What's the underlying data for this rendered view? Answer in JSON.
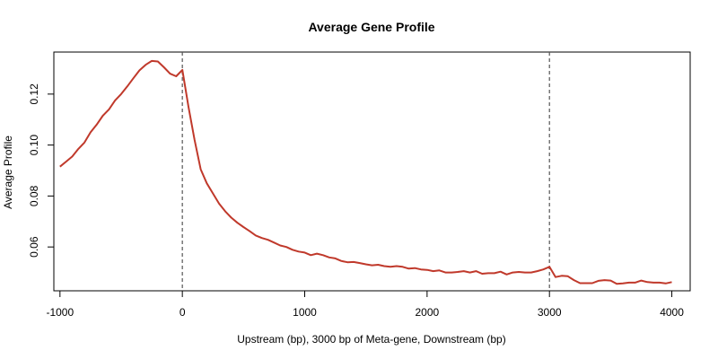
{
  "chart_data": {
    "type": "line",
    "title": "Average Gene Profile",
    "xlabel": "Upstream (bp), 3000 bp of Meta-gene, Downstream (bp)",
    "ylabel": "Average Profile",
    "xlim": [
      -1050,
      4150
    ],
    "ylim": [
      0.0428,
      0.1365
    ],
    "x_ticks": [
      -1000,
      0,
      1000,
      2000,
      3000,
      4000
    ],
    "x_tick_labels": [
      "-1000",
      "0",
      "1000",
      "2000",
      "3000",
      "4000"
    ],
    "y_ticks": [
      0.06,
      0.08,
      0.1,
      0.12
    ],
    "y_tick_labels": [
      "0.06",
      "0.08",
      "0.10",
      "0.12"
    ],
    "grid": false,
    "vlines": [
      0,
      3000
    ],
    "vline_color": "#555555",
    "line_color": "#c0392b",
    "series": [
      {
        "x": [
          -1000,
          -950,
          -900,
          -850,
          -800,
          -750,
          -700,
          -650,
          -600,
          -550,
          -500,
          -450,
          -400,
          -350,
          -300,
          -250,
          -200,
          -150,
          -100,
          -50,
          0,
          50,
          100,
          150,
          200,
          250,
          300,
          350,
          400,
          450,
          500,
          550,
          600,
          650,
          700,
          750,
          800,
          850,
          900,
          950,
          1000,
          1050,
          1100,
          1150,
          1200,
          1250,
          1300,
          1350,
          1400,
          1450,
          1500,
          1550,
          1600,
          1650,
          1700,
          1750,
          1800,
          1850,
          1900,
          1950,
          2000,
          2050,
          2100,
          2150,
          2200,
          2250,
          2300,
          2350,
          2400,
          2450,
          2500,
          2550,
          2600,
          2650,
          2700,
          2750,
          2800,
          2850,
          2900,
          2950,
          3000,
          3050,
          3100,
          3150,
          3200,
          3250,
          3300,
          3350,
          3400,
          3450,
          3500,
          3550,
          3600,
          3650,
          3700,
          3750,
          3800,
          3850,
          3900,
          3950,
          4000
        ],
        "values": [
          0.0915,
          0.0935,
          0.0955,
          0.0985,
          0.101,
          0.105,
          0.108,
          0.1115,
          0.114,
          0.1175,
          0.12,
          0.123,
          0.1262,
          0.1293,
          0.1315,
          0.133,
          0.1328,
          0.1305,
          0.128,
          0.127,
          0.1295,
          0.115,
          0.102,
          0.0905,
          0.085,
          0.081,
          0.077,
          0.074,
          0.0715,
          0.0695,
          0.0678,
          0.0662,
          0.0645,
          0.0635,
          0.0628,
          0.0617,
          0.0606,
          0.06,
          0.0589,
          0.0582,
          0.0578,
          0.0568,
          0.0574,
          0.0568,
          0.0559,
          0.0555,
          0.0545,
          0.054,
          0.0541,
          0.0537,
          0.0532,
          0.0528,
          0.053,
          0.0525,
          0.0522,
          0.0525,
          0.0522,
          0.0515,
          0.0517,
          0.0512,
          0.051,
          0.0505,
          0.0508,
          0.05,
          0.05,
          0.0502,
          0.0505,
          0.05,
          0.0505,
          0.0495,
          0.0497,
          0.0497,
          0.0503,
          0.0492,
          0.05,
          0.0502,
          0.05,
          0.05,
          0.0505,
          0.0512,
          0.0522,
          0.0482,
          0.0487,
          0.0485,
          0.047,
          0.0458,
          0.0458,
          0.0458,
          0.0467,
          0.047,
          0.0468,
          0.0455,
          0.0457,
          0.046,
          0.046,
          0.0468,
          0.0462,
          0.046,
          0.046,
          0.0457,
          0.0462
        ]
      }
    ]
  }
}
